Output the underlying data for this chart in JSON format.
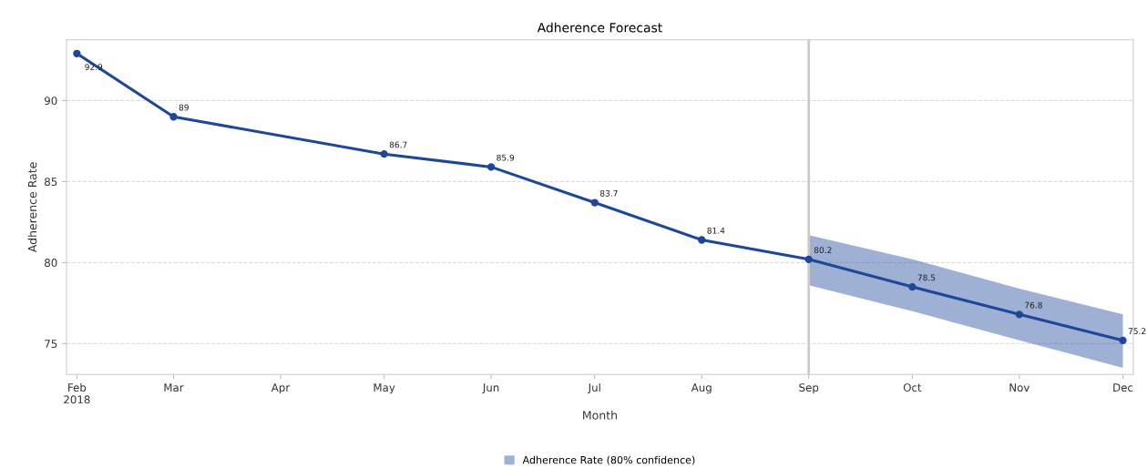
{
  "chart_data": {
    "type": "line",
    "title": "Adherence Forecast",
    "xlabel": "Month",
    "ylabel": "Adherence Rate",
    "x": [
      "2018-02-01",
      "2018-03-01",
      "2018-05-01",
      "2018-06-01",
      "2018-07-01",
      "2018-08-01",
      "2018-09-01",
      "2018-10-01",
      "2018-11-01",
      "2018-12-01"
    ],
    "series": [
      {
        "name": "Adherence Rate (80% confidence)",
        "color": "#1f4799",
        "values": [
          92.9,
          89,
          86.7,
          85.9,
          83.7,
          81.4,
          80.2,
          78.5,
          76.8,
          75.2
        ],
        "lower": [
          null,
          null,
          null,
          null,
          null,
          null,
          78.6,
          77.0,
          75.2,
          73.5
        ],
        "upper": [
          null,
          null,
          null,
          null,
          null,
          null,
          81.7,
          80.2,
          78.4,
          76.8
        ]
      }
    ],
    "xlim": [
      "2018-01-29",
      "2018-12-04"
    ],
    "ylim": [
      73.1,
      93.75
    ],
    "xticks": [
      {
        "value": "2018-02-01",
        "label": "Feb\n2018"
      },
      {
        "value": "2018-03-01",
        "label": "Mar"
      },
      {
        "value": "2018-04-01",
        "label": "Apr"
      },
      {
        "value": "2018-05-01",
        "label": "May"
      },
      {
        "value": "2018-06-01",
        "label": "Jun"
      },
      {
        "value": "2018-07-01",
        "label": "Jul"
      },
      {
        "value": "2018-08-01",
        "label": "Aug"
      },
      {
        "value": "2018-09-01",
        "label": "Sep"
      },
      {
        "value": "2018-10-01",
        "label": "Oct"
      },
      {
        "value": "2018-11-01",
        "label": "Nov"
      },
      {
        "value": "2018-12-01",
        "label": "Dec"
      }
    ],
    "yticks": [
      75,
      80,
      85,
      90
    ],
    "ref_lines": [
      {
        "axis": "x",
        "value": "2018-09-01",
        "color": "#cccccc"
      }
    ],
    "data_labels": true,
    "grid": "y",
    "legend": "bottom",
    "marker": "circle",
    "line_style": "solid"
  }
}
